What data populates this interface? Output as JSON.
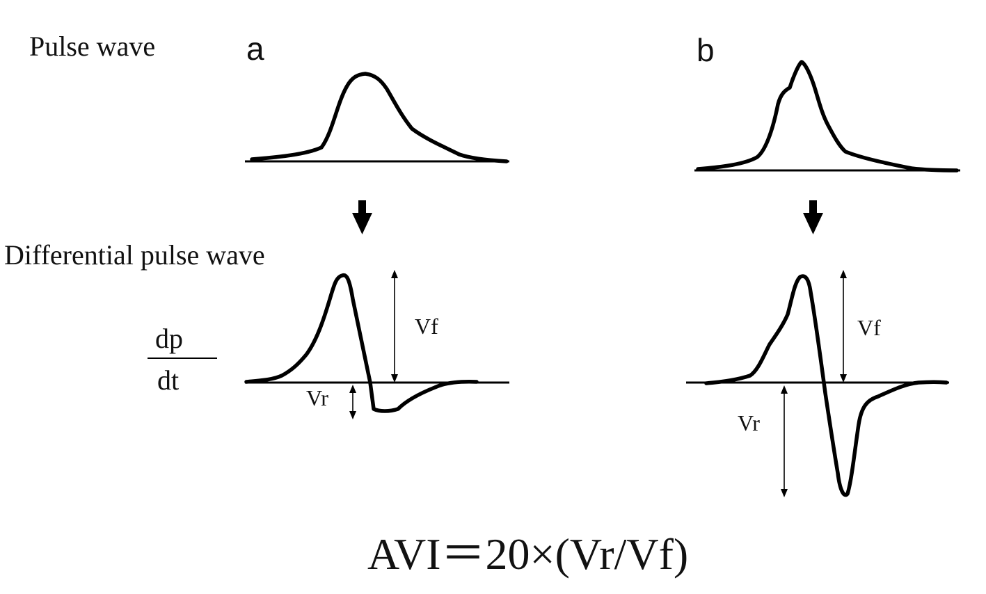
{
  "labels": {
    "pulse_wave": "Pulse wave",
    "differential_pulse_wave": "Differential pulse wave",
    "dp": "dp",
    "dt": "dt",
    "formula": "AVI＝20×(Vr/Vf)"
  },
  "panels": [
    {
      "letter": "a",
      "vf_label": "Vf",
      "vr_label": "Vr"
    },
    {
      "letter": "b",
      "vf_label": "Vf",
      "vr_label": "Vr"
    }
  ],
  "icons": {
    "down_arrow": "down-arrow-icon"
  }
}
